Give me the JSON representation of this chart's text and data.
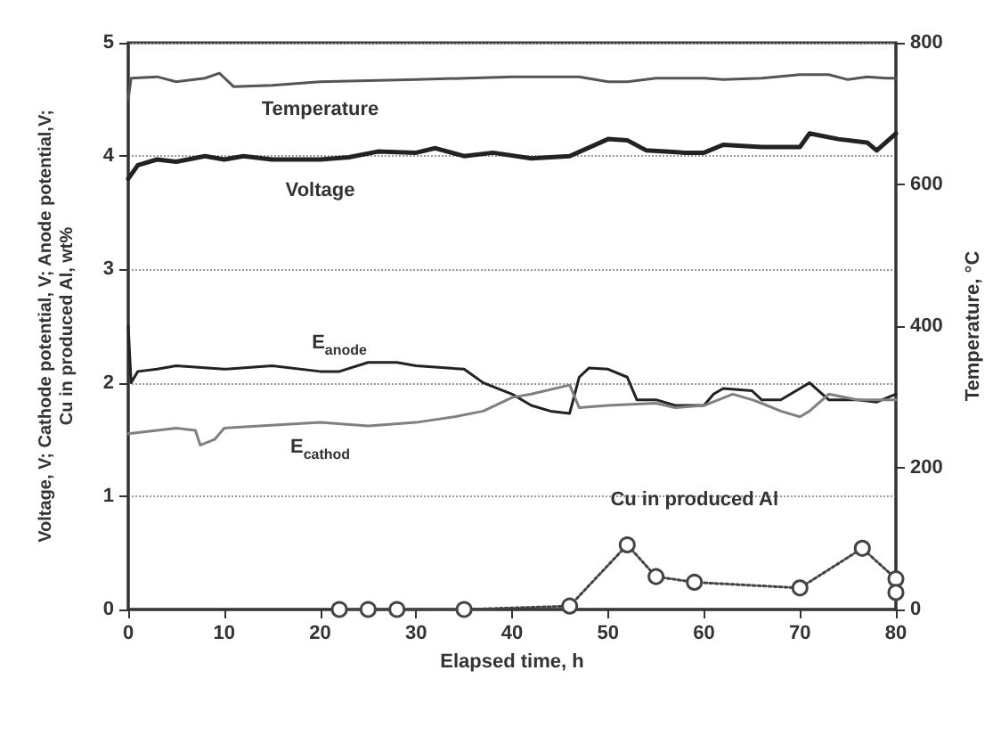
{
  "chart_data": {
    "type": "line",
    "xlabel": "Elapsed time, h",
    "ylabel": "Voltage, V; Cathode potential, V; Anode potential,V; Cu in produced Al, wt%",
    "y2label": "Temperature, °C",
    "xlim": [
      0,
      80
    ],
    "xticks": [
      0,
      10,
      20,
      30,
      40,
      50,
      60,
      70,
      80
    ],
    "ylim": [
      0,
      5
    ],
    "yticks": [
      0,
      1,
      2,
      3,
      4,
      5
    ],
    "y2lim": [
      0,
      800
    ],
    "y2ticks": [
      0,
      200,
      400,
      600,
      800
    ],
    "grid": "y",
    "marker": "none",
    "line_style": "solid",
    "series": [
      {
        "name": "Temperature",
        "color": "#555555",
        "axis": "y2",
        "x": [
          0,
          0.3,
          3,
          5,
          8,
          9.5,
          11,
          15,
          20,
          30,
          40,
          47,
          50,
          52,
          55,
          60,
          62,
          66,
          70,
          73,
          75,
          77,
          79,
          80
        ],
        "values": [
          720,
          750,
          752,
          745,
          750,
          757,
          738,
          740,
          745,
          748,
          752,
          752,
          745,
          745,
          750,
          750,
          748,
          750,
          755,
          755,
          748,
          752,
          750,
          750
        ]
      },
      {
        "name": "Voltage",
        "color": "#222222",
        "x": [
          0,
          1,
          3,
          5,
          8,
          10,
          12,
          15,
          20,
          23,
          26,
          30,
          32,
          35,
          38,
          42,
          46,
          50,
          52,
          54,
          58,
          60,
          62,
          66,
          70,
          71,
          74,
          77,
          78,
          80
        ],
        "values": [
          3.8,
          3.92,
          3.97,
          3.95,
          4.0,
          3.97,
          4.0,
          3.97,
          3.97,
          3.99,
          4.04,
          4.03,
          4.07,
          4.0,
          4.03,
          3.98,
          4.0,
          4.15,
          4.14,
          4.05,
          4.03,
          4.03,
          4.1,
          4.08,
          4.08,
          4.2,
          4.15,
          4.12,
          4.05,
          4.2
        ]
      },
      {
        "name": "E$_{anode}$",
        "color": "#222222",
        "x": [
          0,
          0.3,
          1,
          3,
          5,
          10,
          15,
          20,
          22,
          25,
          28,
          30,
          35,
          37,
          40,
          42,
          44,
          46,
          47,
          48,
          50,
          52,
          53,
          55,
          57,
          60,
          61,
          62,
          65,
          66,
          68,
          70,
          71,
          73,
          76,
          78,
          80
        ],
        "values": [
          2.5,
          2.0,
          2.1,
          2.12,
          2.15,
          2.12,
          2.15,
          2.1,
          2.1,
          2.18,
          2.18,
          2.15,
          2.12,
          2.0,
          1.9,
          1.8,
          1.75,
          1.73,
          2.05,
          2.13,
          2.12,
          2.05,
          1.85,
          1.85,
          1.8,
          1.8,
          1.9,
          1.95,
          1.93,
          1.85,
          1.85,
          1.95,
          2.0,
          1.85,
          1.85,
          1.83,
          1.9
        ]
      },
      {
        "name": "E$_{cathod}$",
        "color": "#808080",
        "x": [
          0,
          5,
          7,
          7.5,
          9,
          10,
          20,
          25,
          30,
          34,
          37,
          40,
          42,
          46,
          47,
          50,
          55,
          57,
          60,
          63,
          65,
          66,
          68,
          70,
          71,
          73,
          76,
          80
        ],
        "values": [
          1.55,
          1.6,
          1.58,
          1.45,
          1.5,
          1.6,
          1.65,
          1.62,
          1.65,
          1.7,
          1.75,
          1.87,
          1.9,
          1.98,
          1.78,
          1.8,
          1.82,
          1.78,
          1.8,
          1.9,
          1.85,
          1.82,
          1.75,
          1.7,
          1.75,
          1.9,
          1.85,
          1.85
        ]
      },
      {
        "name": "Cu in produced Al",
        "color": "#444444",
        "marker": "circle",
        "line_style": "dotted",
        "x": [
          22,
          25,
          28,
          35,
          46,
          52,
          55,
          59,
          70,
          76.5,
          80,
          80
        ],
        "values": [
          0,
          0,
          0,
          0,
          0.03,
          0.57,
          0.29,
          0.24,
          0.19,
          0.54,
          0.27,
          0.15
        ]
      }
    ]
  }
}
